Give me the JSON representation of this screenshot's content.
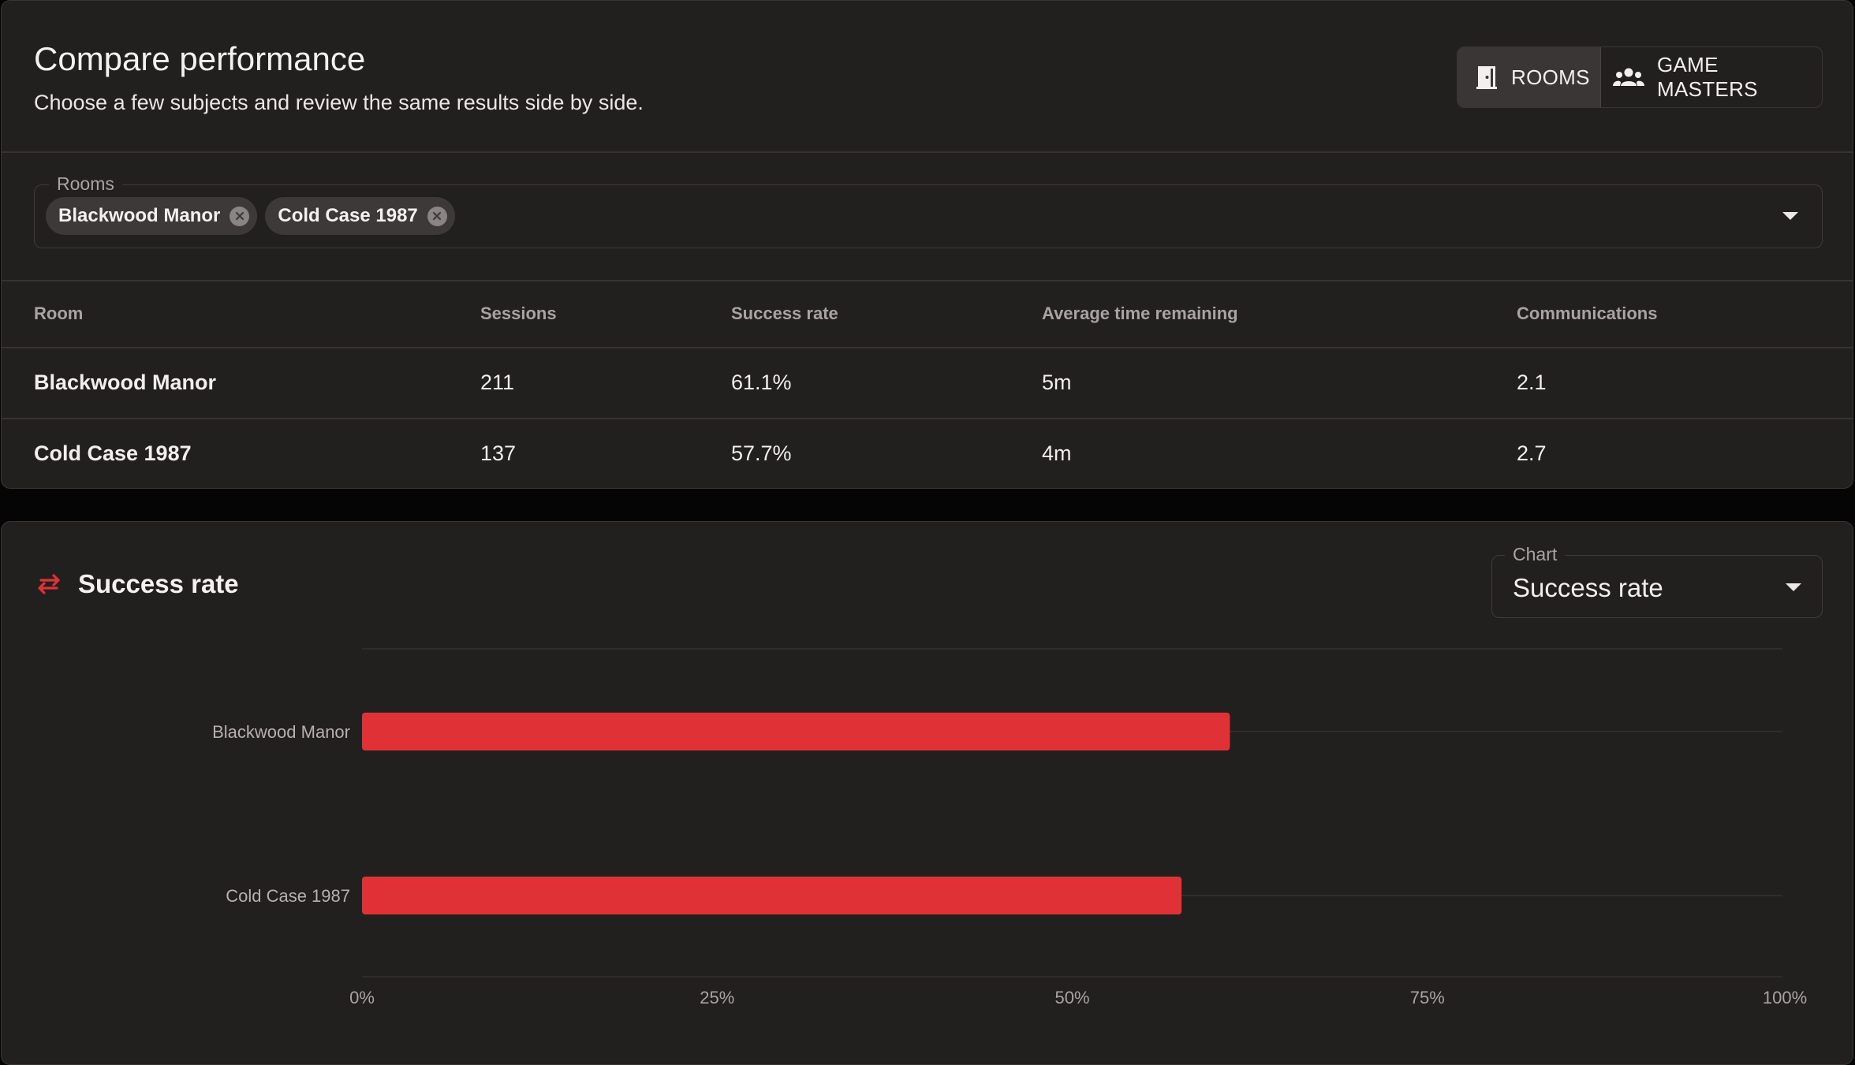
{
  "header": {
    "title": "Compare performance",
    "subtitle": "Choose a few subjects and review the same results side by side."
  },
  "toggle": {
    "rooms_label": "ROOMS",
    "game_masters_label": "GAME MASTERS",
    "active": "ROOMS"
  },
  "selector": {
    "legend": "Rooms",
    "chips": [
      "Blackwood Manor",
      "Cold Case 1987"
    ]
  },
  "table": {
    "columns": [
      "Room",
      "Sessions",
      "Success rate",
      "Average time remaining",
      "Communications"
    ],
    "rows": [
      [
        "Blackwood Manor",
        "211",
        "61.1%",
        "5m",
        "2.1"
      ],
      [
        "Cold Case 1987",
        "137",
        "57.7%",
        "4m",
        "2.7"
      ]
    ]
  },
  "chart_panel": {
    "title": "Success rate",
    "select_legend": "Chart",
    "select_value": "Success rate"
  },
  "colors": {
    "accent": "#e03236",
    "panel": "#221f1f",
    "background": "#060505"
  },
  "chart_data": {
    "type": "bar",
    "orientation": "horizontal",
    "categories": [
      "Blackwood Manor",
      "Cold Case 1987"
    ],
    "values": [
      61.1,
      57.7
    ],
    "xlim": [
      0,
      100
    ],
    "xticks": [
      "0%",
      "25%",
      "50%",
      "75%",
      "100%"
    ],
    "grid": true
  }
}
